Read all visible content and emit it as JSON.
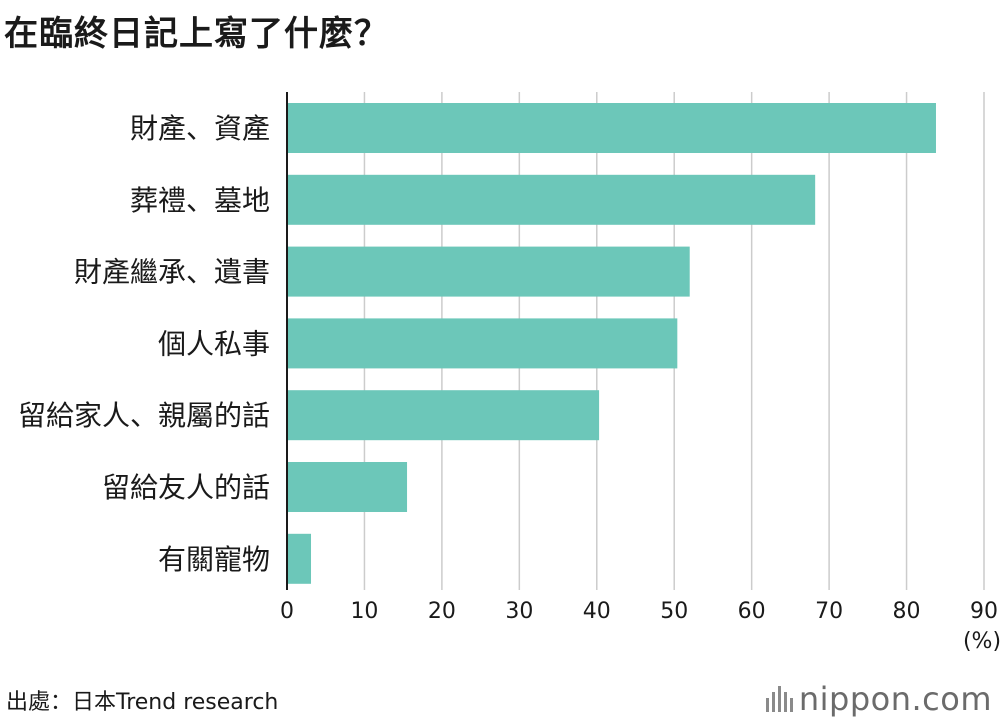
{
  "title": "在臨終日記上寫了什麼？",
  "source": "出處：日本Trend research",
  "logo": {
    "name": "nippon",
    "dot_suffix": ".com"
  },
  "colors": {
    "bar": "#6cc7b9",
    "grid": "#cccccc",
    "axis": "#1a1a1a",
    "text": "#1a1a1a"
  },
  "chart_data": {
    "type": "bar",
    "orientation": "horizontal",
    "categories": [
      "財產、資產",
      "葬禮、墓地",
      "財產繼承、遺書",
      "個人私事",
      "留給家人、親屬的話",
      "留給友人的話",
      "有關寵物"
    ],
    "values": [
      83.8,
      68.2,
      52.0,
      50.4,
      40.3,
      15.5,
      3.1
    ],
    "xlim": [
      0,
      90
    ],
    "xticks": [
      0,
      10,
      20,
      30,
      40,
      50,
      60,
      70,
      80,
      90
    ],
    "xunit": "(%)",
    "grid": true
  }
}
